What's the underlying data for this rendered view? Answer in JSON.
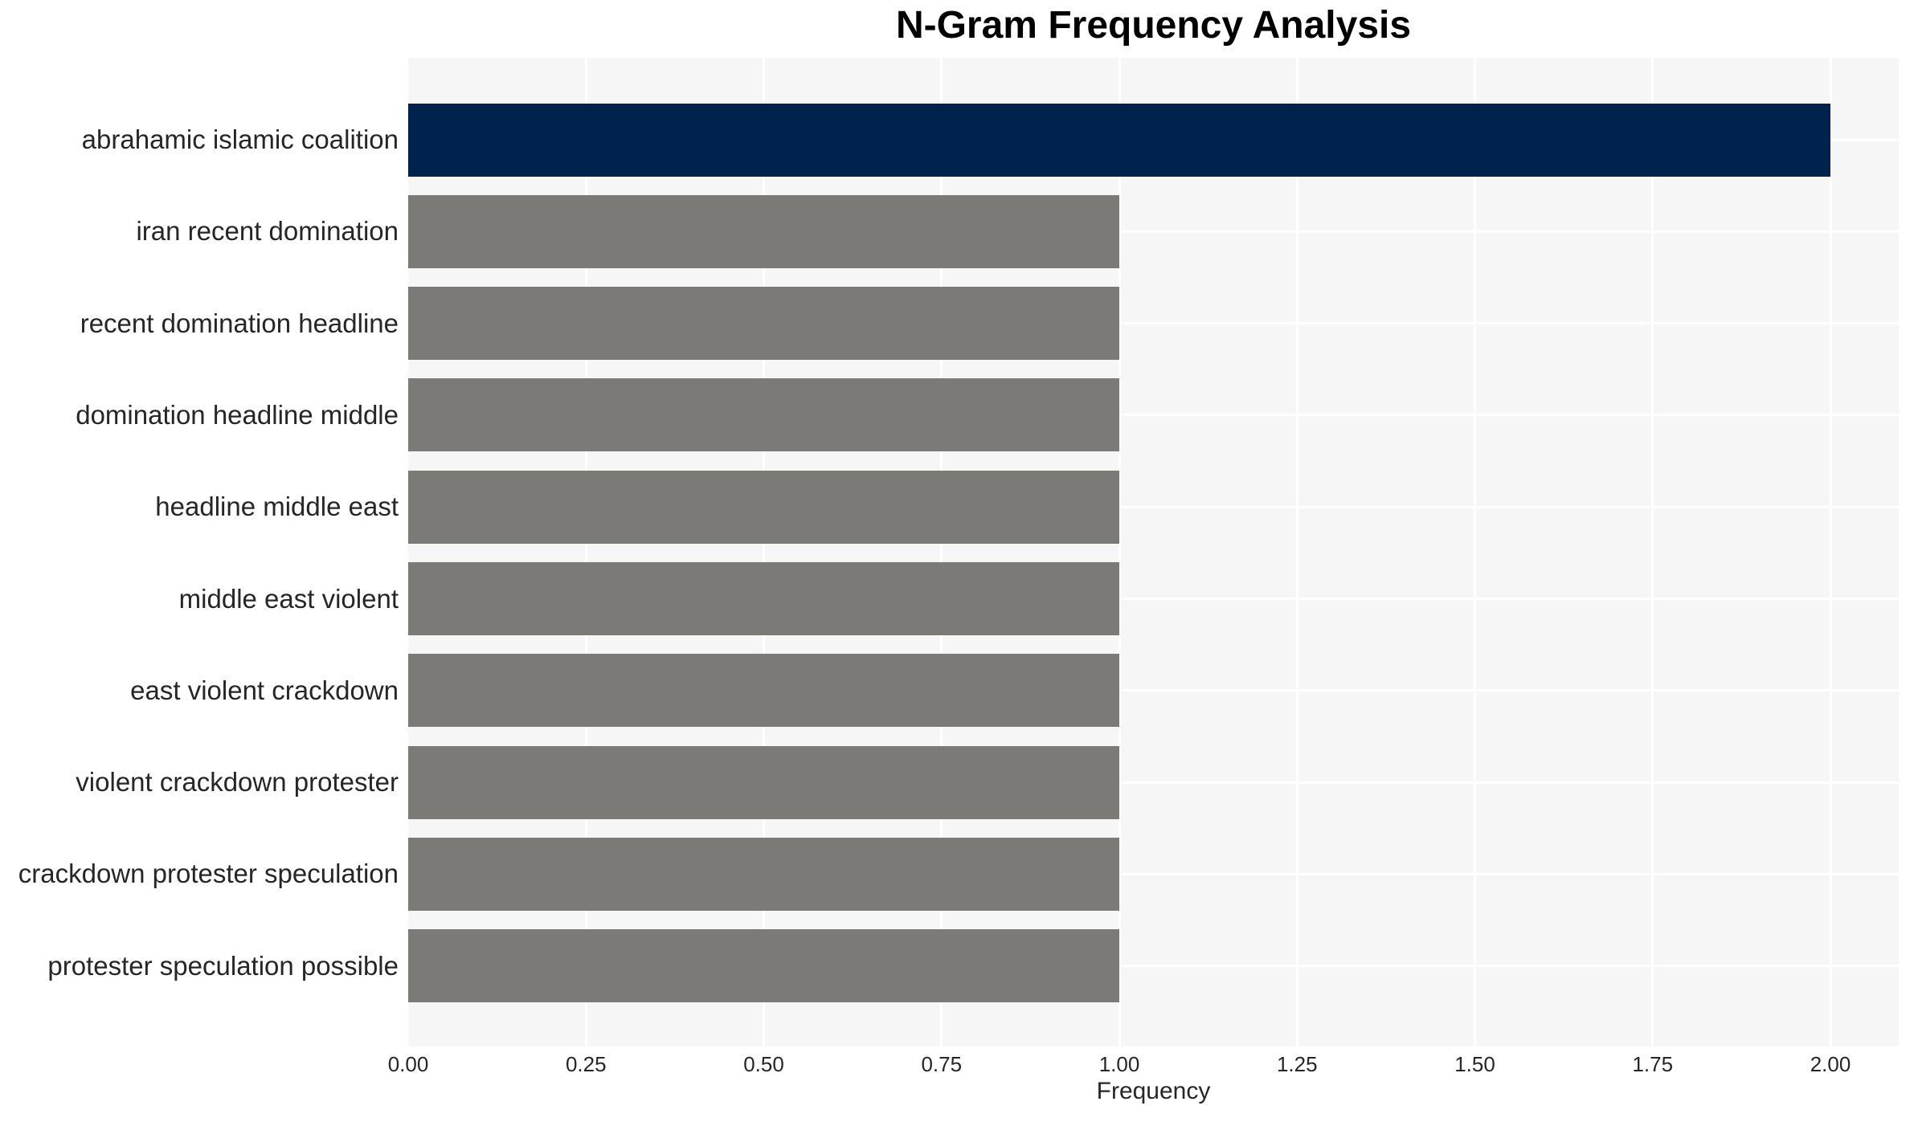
{
  "chart_data": {
    "type": "bar",
    "orientation": "horizontal",
    "title": "N-Gram Frequency Analysis",
    "xlabel": "Frequency",
    "ylabel": "",
    "categories": [
      "abrahamic islamic coalition",
      "iran recent domination",
      "recent domination headline",
      "domination headline middle",
      "headline middle east",
      "middle east violent",
      "east violent crackdown",
      "violent crackdown protester",
      "crackdown protester speculation",
      "protester speculation possible"
    ],
    "values": [
      2,
      1,
      1,
      1,
      1,
      1,
      1,
      1,
      1,
      1
    ],
    "xticks": [
      "0.00",
      "0.25",
      "0.50",
      "0.75",
      "1.00",
      "1.25",
      "1.50",
      "1.75",
      "2.00"
    ],
    "xtick_values": [
      0,
      0.25,
      0.5,
      0.75,
      1.0,
      1.25,
      1.5,
      1.75,
      2.0
    ],
    "xlim": [
      0,
      2.096
    ],
    "grid": true,
    "legend_position": "none",
    "colors": {
      "highlight_bar": "#00234e",
      "default_bar": "#7c7a77",
      "plot_background": "#f6f6f6",
      "grid_line": "#ffffff",
      "tick_text": "#262626",
      "title_text": "#000000"
    }
  }
}
